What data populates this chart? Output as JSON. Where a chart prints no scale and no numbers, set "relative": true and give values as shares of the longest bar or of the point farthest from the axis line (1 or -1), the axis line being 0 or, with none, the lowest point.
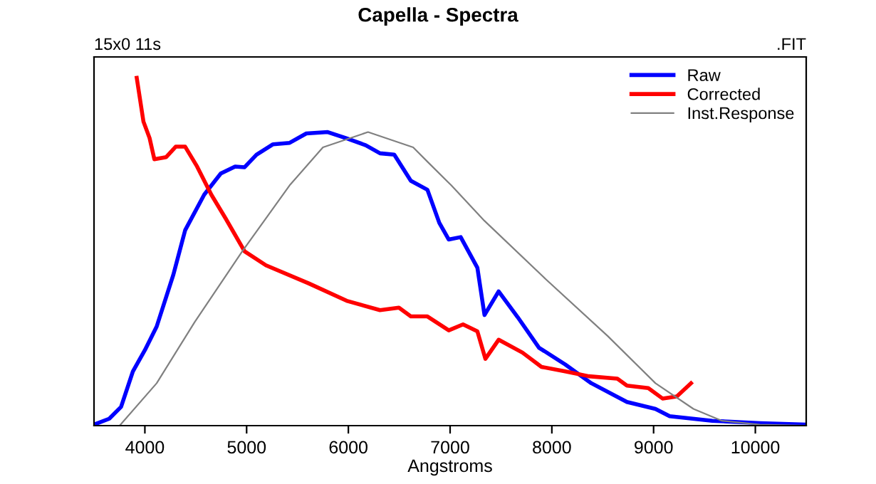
{
  "chart_data": {
    "type": "line",
    "title": "Capella - Spectra",
    "xlabel": "Angstroms",
    "relative": true,
    "xlim": [
      3500,
      10500
    ],
    "xticks": [
      4000,
      5000,
      6000,
      7000,
      8000,
      9000,
      10000
    ],
    "grid": false,
    "legend": "top right",
    "annotations": [
      "15x0 11s",
      ".FIT"
    ],
    "series": [
      {
        "name": "Raw",
        "color": "#0000ff",
        "x": [
          3500,
          3650,
          3766,
          3882,
          4000,
          4116,
          4280,
          4396,
          4583,
          4746,
          4887,
          4980,
          5097,
          5260,
          5423,
          5587,
          5797,
          5983,
          6171,
          6311,
          6451,
          6614,
          6777,
          6894,
          6987,
          7104,
          7268,
          7338,
          7477,
          7664,
          7874,
          8131,
          8388,
          8738,
          9018,
          9158,
          9578,
          10045,
          10489
        ],
        "values": [
          0.003,
          0.02,
          0.054,
          0.156,
          0.217,
          0.285,
          0.434,
          0.562,
          0.664,
          0.725,
          0.745,
          0.743,
          0.779,
          0.809,
          0.813,
          0.84,
          0.844,
          0.826,
          0.806,
          0.783,
          0.779,
          0.704,
          0.678,
          0.583,
          0.535,
          0.542,
          0.454,
          0.318,
          0.386,
          0.312,
          0.224,
          0.176,
          0.122,
          0.068,
          0.048,
          0.027,
          0.014,
          0.007,
          0.003
        ]
      },
      {
        "name": "Corrected",
        "color": "#ff0000",
        "x": [
          3920,
          3986,
          4046,
          4093,
          4210,
          4303,
          4396,
          4513,
          4653,
          4793,
          4980,
          5190,
          5610,
          5983,
          6311,
          6497,
          6614,
          6777,
          6987,
          7127,
          7268,
          7347,
          7477,
          7711,
          7898,
          8131,
          8364,
          8644,
          8738,
          8948,
          9088,
          9228,
          9368
        ],
        "values": [
          1.0,
          0.874,
          0.827,
          0.766,
          0.772,
          0.802,
          0.802,
          0.745,
          0.664,
          0.596,
          0.501,
          0.461,
          0.409,
          0.359,
          0.332,
          0.339,
          0.314,
          0.314,
          0.274,
          0.291,
          0.271,
          0.192,
          0.247,
          0.21,
          0.169,
          0.156,
          0.142,
          0.135,
          0.115,
          0.108,
          0.078,
          0.084,
          0.122
        ]
      },
      {
        "name": "Inst.Response",
        "color": "#808080",
        "x": [
          3752,
          4116,
          4490,
          4957,
          5423,
          5750,
          6193,
          6637,
          6777,
          7011,
          7337,
          7944,
          8551,
          9018,
          9392,
          9672,
          10045,
          10489
        ],
        "values": [
          0.0,
          0.122,
          0.298,
          0.501,
          0.691,
          0.8,
          0.844,
          0.8,
          0.759,
          0.691,
          0.589,
          0.42,
          0.257,
          0.122,
          0.048,
          0.014,
          0.003,
          0.0
        ]
      }
    ]
  }
}
